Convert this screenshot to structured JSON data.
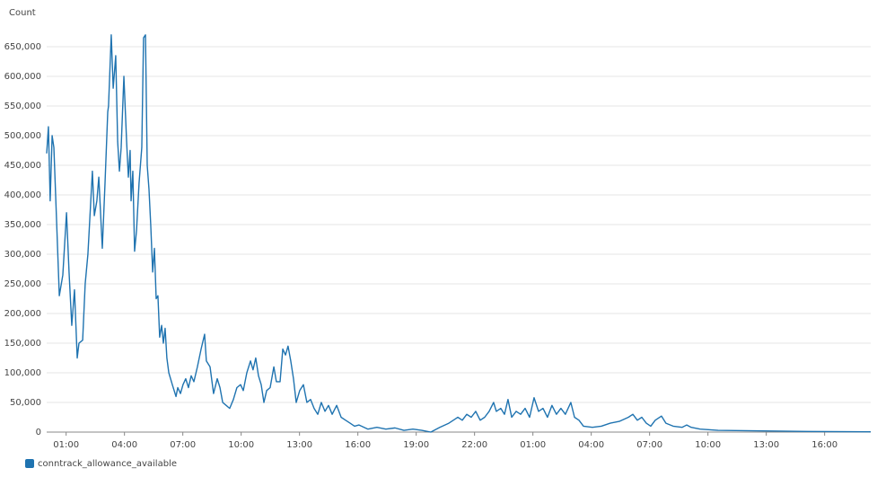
{
  "chart_data": {
    "type": "line",
    "y_axis_label": "Count",
    "x": [
      0.0,
      0.09,
      0.18,
      0.28,
      0.37,
      0.46,
      0.65,
      0.83,
      1.02,
      1.15,
      1.29,
      1.43,
      1.57,
      1.66,
      1.85,
      1.98,
      2.12,
      2.35,
      2.45,
      2.58,
      2.68,
      2.86,
      3.0,
      3.14,
      3.18,
      3.32,
      3.42,
      3.55,
      3.65,
      3.74,
      3.83,
      3.97,
      4.11,
      4.2,
      4.29,
      4.34,
      4.43,
      4.52,
      4.62,
      4.75,
      4.89,
      4.98,
      5.08,
      5.17,
      5.26,
      5.35,
      5.45,
      5.54,
      5.63,
      5.72,
      5.81,
      5.91,
      6.0,
      6.09,
      6.18,
      6.28,
      6.46,
      6.65,
      6.74,
      6.88,
      7.01,
      7.15,
      7.29,
      7.43,
      7.57,
      7.75,
      7.94,
      8.12,
      8.21,
      8.4,
      8.58,
      8.77,
      8.91,
      9.05,
      9.23,
      9.41,
      9.6,
      9.78,
      9.97,
      10.11,
      10.29,
      10.48,
      10.61,
      10.75,
      10.89,
      11.03,
      11.17,
      11.31,
      11.49,
      11.68,
      11.81,
      12.0,
      12.14,
      12.28,
      12.41,
      12.55,
      12.69,
      12.83,
      13.01,
      13.2,
      13.38,
      13.57,
      13.75,
      13.94,
      14.12,
      14.31,
      14.49,
      14.68,
      14.91,
      15.14,
      15.37,
      15.6,
      15.83,
      16.06,
      16.52,
      16.98,
      17.44,
      17.91,
      18.37,
      18.83,
      19.29,
      19.75,
      20.21,
      20.68,
      21.14,
      21.37,
      21.6,
      21.83,
      22.06,
      22.29,
      22.52,
      22.75,
      22.98,
      23.12,
      23.35,
      23.54,
      23.72,
      23.91,
      24.14,
      24.37,
      24.6,
      24.83,
      25.06,
      25.29,
      25.52,
      25.75,
      25.98,
      26.21,
      26.44,
      26.67,
      26.95,
      27.14,
      27.37,
      27.6,
      28.06,
      28.52,
      28.98,
      29.44,
      29.91,
      30.14,
      30.37,
      30.6,
      30.83,
      31.06,
      31.29,
      31.61,
      31.84,
      32.21,
      32.67,
      32.91,
      33.14,
      33.6,
      34.52,
      36.83,
      39.14,
      42.37
    ],
    "series": [
      {
        "name": "conntrack_allowance_available",
        "color": "#1f73b0",
        "values": [
          470000,
          515000,
          390000,
          500000,
          480000,
          400000,
          230000,
          265000,
          370000,
          270000,
          180000,
          240000,
          125000,
          150000,
          155000,
          250000,
          300000,
          440000,
          365000,
          390000,
          430000,
          310000,
          420000,
          540000,
          550000,
          670000,
          580000,
          635000,
          490000,
          440000,
          480000,
          600000,
          490000,
          430000,
          475000,
          390000,
          440000,
          305000,
          340000,
          420000,
          480000,
          665000,
          670000,
          450000,
          410000,
          350000,
          270000,
          310000,
          225000,
          230000,
          160000,
          180000,
          150000,
          175000,
          125000,
          100000,
          80000,
          60000,
          75000,
          65000,
          80000,
          90000,
          75000,
          95000,
          85000,
          110000,
          140000,
          165000,
          120000,
          110000,
          65000,
          90000,
          75000,
          50000,
          45000,
          40000,
          55000,
          75000,
          80000,
          70000,
          100000,
          120000,
          105000,
          125000,
          95000,
          80000,
          50000,
          70000,
          75000,
          110000,
          85000,
          85000,
          140000,
          130000,
          145000,
          120000,
          90000,
          50000,
          70000,
          80000,
          50000,
          55000,
          40000,
          30000,
          50000,
          35000,
          45000,
          30000,
          45000,
          25000,
          20000,
          15000,
          10000,
          12000,
          5000,
          8000,
          5000,
          7000,
          3000,
          5000,
          3000,
          0,
          8000,
          15000,
          25000,
          20000,
          30000,
          25000,
          35000,
          20000,
          25000,
          35000,
          50000,
          35000,
          40000,
          30000,
          55000,
          25000,
          35000,
          30000,
          40000,
          25000,
          58000,
          35000,
          40000,
          25000,
          45000,
          30000,
          40000,
          30000,
          50000,
          25000,
          20000,
          10000,
          8000,
          10000,
          15000,
          18000,
          25000,
          30000,
          20000,
          25000,
          15000,
          10000,
          20000,
          27000,
          15000,
          10000,
          8000,
          12000,
          8000,
          5000,
          3000,
          2000,
          1000,
          500
        ]
      }
    ],
    "xlim": [
      0,
      42.37
    ],
    "xticks": [
      {
        "value": 1,
        "label": "01:00"
      },
      {
        "value": 4,
        "label": "04:00"
      },
      {
        "value": 7,
        "label": "07:00"
      },
      {
        "value": 10,
        "label": "10:00"
      },
      {
        "value": 13,
        "label": "13:00"
      },
      {
        "value": 16,
        "label": "16:00"
      },
      {
        "value": 19,
        "label": "19:00"
      },
      {
        "value": 22,
        "label": "22:00"
      },
      {
        "value": 25,
        "label": "01:00"
      },
      {
        "value": 28,
        "label": "04:00"
      },
      {
        "value": 31,
        "label": "07:00"
      },
      {
        "value": 34,
        "label": "10:00"
      },
      {
        "value": 37,
        "label": "13:00"
      },
      {
        "value": 40,
        "label": "16:00"
      }
    ],
    "ylim": [
      0,
      650000
    ],
    "yticks": [
      0,
      {
        "value": 50000,
        "label": "50,000"
      },
      {
        "value": 100000,
        "label": "100,000"
      },
      {
        "value": 150000,
        "label": "150,000"
      },
      {
        "value": 200000,
        "label": "200,000"
      },
      {
        "value": 250000,
        "label": "250,000"
      },
      {
        "value": 300000,
        "label": "300,000"
      },
      {
        "value": 350000,
        "label": "350,000"
      },
      {
        "value": 400000,
        "label": "400,000"
      },
      {
        "value": 450000,
        "label": "450,000"
      },
      {
        "value": 500000,
        "label": "500,000"
      },
      {
        "value": 550000,
        "label": "550,000"
      },
      {
        "value": 600000,
        "label": "600,000"
      },
      {
        "value": 650000,
        "label": "650,000"
      }
    ],
    "grid": true,
    "legend": "bottom-left"
  }
}
